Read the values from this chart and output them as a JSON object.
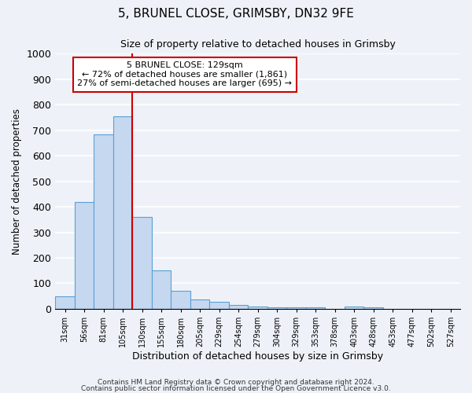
{
  "title": "5, BRUNEL CLOSE, GRIMSBY, DN32 9FE",
  "subtitle": "Size of property relative to detached houses in Grimsby",
  "xlabel": "Distribution of detached houses by size in Grimsby",
  "ylabel": "Number of detached properties",
  "bin_labels": [
    "31sqm",
    "56sqm",
    "81sqm",
    "105sqm",
    "130sqm",
    "155sqm",
    "180sqm",
    "205sqm",
    "229sqm",
    "254sqm",
    "279sqm",
    "304sqm",
    "329sqm",
    "353sqm",
    "378sqm",
    "403sqm",
    "428sqm",
    "453sqm",
    "477sqm",
    "502sqm",
    "527sqm"
  ],
  "bar_heights": [
    50,
    420,
    685,
    755,
    360,
    150,
    72,
    38,
    27,
    15,
    10,
    7,
    5,
    5,
    0,
    8,
    7,
    0,
    0,
    0,
    0
  ],
  "bar_color": "#c5d8f0",
  "bar_edge_color": "#5a9fd4",
  "red_line_bin": 4,
  "annotation_text": "5 BRUNEL CLOSE: 129sqm\n← 72% of detached houses are smaller (1,861)\n27% of semi-detached houses are larger (695) →",
  "annotation_box_color": "#ffffff",
  "annotation_box_edge_color": "#cc0000",
  "ylim": [
    0,
    1000
  ],
  "yticks": [
    0,
    100,
    200,
    300,
    400,
    500,
    600,
    700,
    800,
    900,
    1000
  ],
  "background_color": "#eef2f8",
  "grid_color": "#ffffff",
  "footer1": "Contains HM Land Registry data © Crown copyright and database right 2024.",
  "footer2": "Contains public sector information licensed under the Open Government Licence v3.0."
}
